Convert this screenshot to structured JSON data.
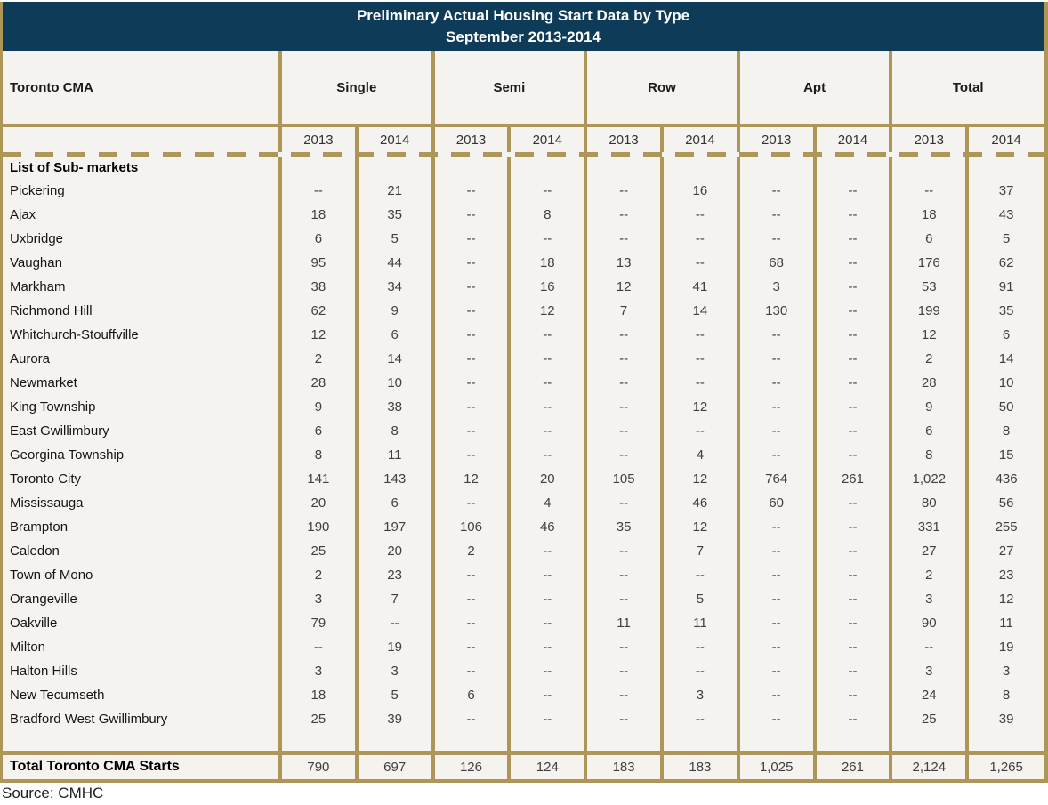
{
  "title": {
    "line1": "Preliminary Actual Housing Start Data by Type",
    "line2": "September 2013-2014"
  },
  "source": "Source: CMHC",
  "colors": {
    "header_bg": "#0e3c58",
    "border": "#ad9656",
    "cell_bg": "#f5f3ef",
    "title_text": "#ffffff"
  },
  "chart_data": {
    "type": "table",
    "title": "Preliminary Actual Housing Start Data by Type September 2013-2014",
    "corner_label": "Toronto CMA",
    "column_groups": [
      "Single",
      "Semi",
      "Row",
      "Apt",
      "Total"
    ],
    "year_columns": [
      "2013",
      "2014",
      "2013",
      "2014",
      "2013",
      "2014",
      "2013",
      "2014",
      "2013",
      "2014"
    ],
    "submarkets_label": "List of Sub- markets",
    "rows": [
      {
        "name": "Pickering",
        "values": [
          "--",
          "21",
          "--",
          "--",
          "--",
          "16",
          "--",
          "--",
          "--",
          "37"
        ]
      },
      {
        "name": "Ajax",
        "values": [
          "18",
          "35",
          "--",
          "8",
          "--",
          "--",
          "--",
          "--",
          "18",
          "43"
        ]
      },
      {
        "name": "Uxbridge",
        "values": [
          "6",
          "5",
          "--",
          "--",
          "--",
          "--",
          "--",
          "--",
          "6",
          "5"
        ]
      },
      {
        "name": "Vaughan",
        "values": [
          "95",
          "44",
          "--",
          "18",
          "13",
          "--",
          "68",
          "--",
          "176",
          "62"
        ]
      },
      {
        "name": "Markham",
        "values": [
          "38",
          "34",
          "--",
          "16",
          "12",
          "41",
          "3",
          "--",
          "53",
          "91"
        ]
      },
      {
        "name": "Richmond Hill",
        "values": [
          "62",
          "9",
          "--",
          "12",
          "7",
          "14",
          "130",
          "--",
          "199",
          "35"
        ]
      },
      {
        "name": "Whitchurch-Stouffville",
        "values": [
          "12",
          "6",
          "--",
          "--",
          "--",
          "--",
          "--",
          "--",
          "12",
          "6"
        ]
      },
      {
        "name": "Aurora",
        "values": [
          "2",
          "14",
          "--",
          "--",
          "--",
          "--",
          "--",
          "--",
          "2",
          "14"
        ]
      },
      {
        "name": "Newmarket",
        "values": [
          "28",
          "10",
          "--",
          "--",
          "--",
          "--",
          "--",
          "--",
          "28",
          "10"
        ]
      },
      {
        "name": "King Township",
        "values": [
          "9",
          "38",
          "--",
          "--",
          "--",
          "12",
          "--",
          "--",
          "9",
          "50"
        ]
      },
      {
        "name": "East Gwillimbury",
        "values": [
          "6",
          "8",
          "--",
          "--",
          "--",
          "--",
          "--",
          "--",
          "6",
          "8"
        ]
      },
      {
        "name": "Georgina Township",
        "values": [
          "8",
          "11",
          "--",
          "--",
          "--",
          "4",
          "--",
          "--",
          "8",
          "15"
        ]
      },
      {
        "name": "Toronto City",
        "values": [
          "141",
          "143",
          "12",
          "20",
          "105",
          "12",
          "764",
          "261",
          "1,022",
          "436"
        ]
      },
      {
        "name": "Mississauga",
        "values": [
          "20",
          "6",
          "--",
          "4",
          "--",
          "46",
          "60",
          "--",
          "80",
          "56"
        ]
      },
      {
        "name": "Brampton",
        "values": [
          "190",
          "197",
          "106",
          "46",
          "35",
          "12",
          "--",
          "--",
          "331",
          "255"
        ]
      },
      {
        "name": "Caledon",
        "values": [
          "25",
          "20",
          "2",
          "--",
          "--",
          "7",
          "--",
          "--",
          "27",
          "27"
        ]
      },
      {
        "name": "Town of Mono",
        "values": [
          "2",
          "23",
          "--",
          "--",
          "--",
          "--",
          "--",
          "--",
          "2",
          "23"
        ]
      },
      {
        "name": "Orangeville",
        "values": [
          "3",
          "7",
          "--",
          "--",
          "--",
          "5",
          "--",
          "--",
          "3",
          "12"
        ]
      },
      {
        "name": "Oakville",
        "values": [
          "79",
          "--",
          "--",
          "--",
          "11",
          "11",
          "--",
          "--",
          "90",
          "11"
        ]
      },
      {
        "name": "Milton",
        "values": [
          "--",
          "19",
          "--",
          "--",
          "--",
          "--",
          "--",
          "--",
          "--",
          "19"
        ]
      },
      {
        "name": "Halton Hills",
        "values": [
          "3",
          "3",
          "--",
          "--",
          "--",
          "--",
          "--",
          "--",
          "3",
          "3"
        ]
      },
      {
        "name": "New Tecumseth",
        "values": [
          "18",
          "5",
          "6",
          "--",
          "--",
          "3",
          "--",
          "--",
          "24",
          "8"
        ]
      },
      {
        "name": "Bradford West Gwillimbury",
        "values": [
          "25",
          "39",
          "--",
          "--",
          "--",
          "--",
          "--",
          "--",
          "25",
          "39"
        ]
      }
    ],
    "total_row": {
      "label": "Total Toronto CMA Starts",
      "values": [
        "790",
        "697",
        "126",
        "124",
        "183",
        "183",
        "1,025",
        "261",
        "2,124",
        "1,265"
      ]
    }
  }
}
